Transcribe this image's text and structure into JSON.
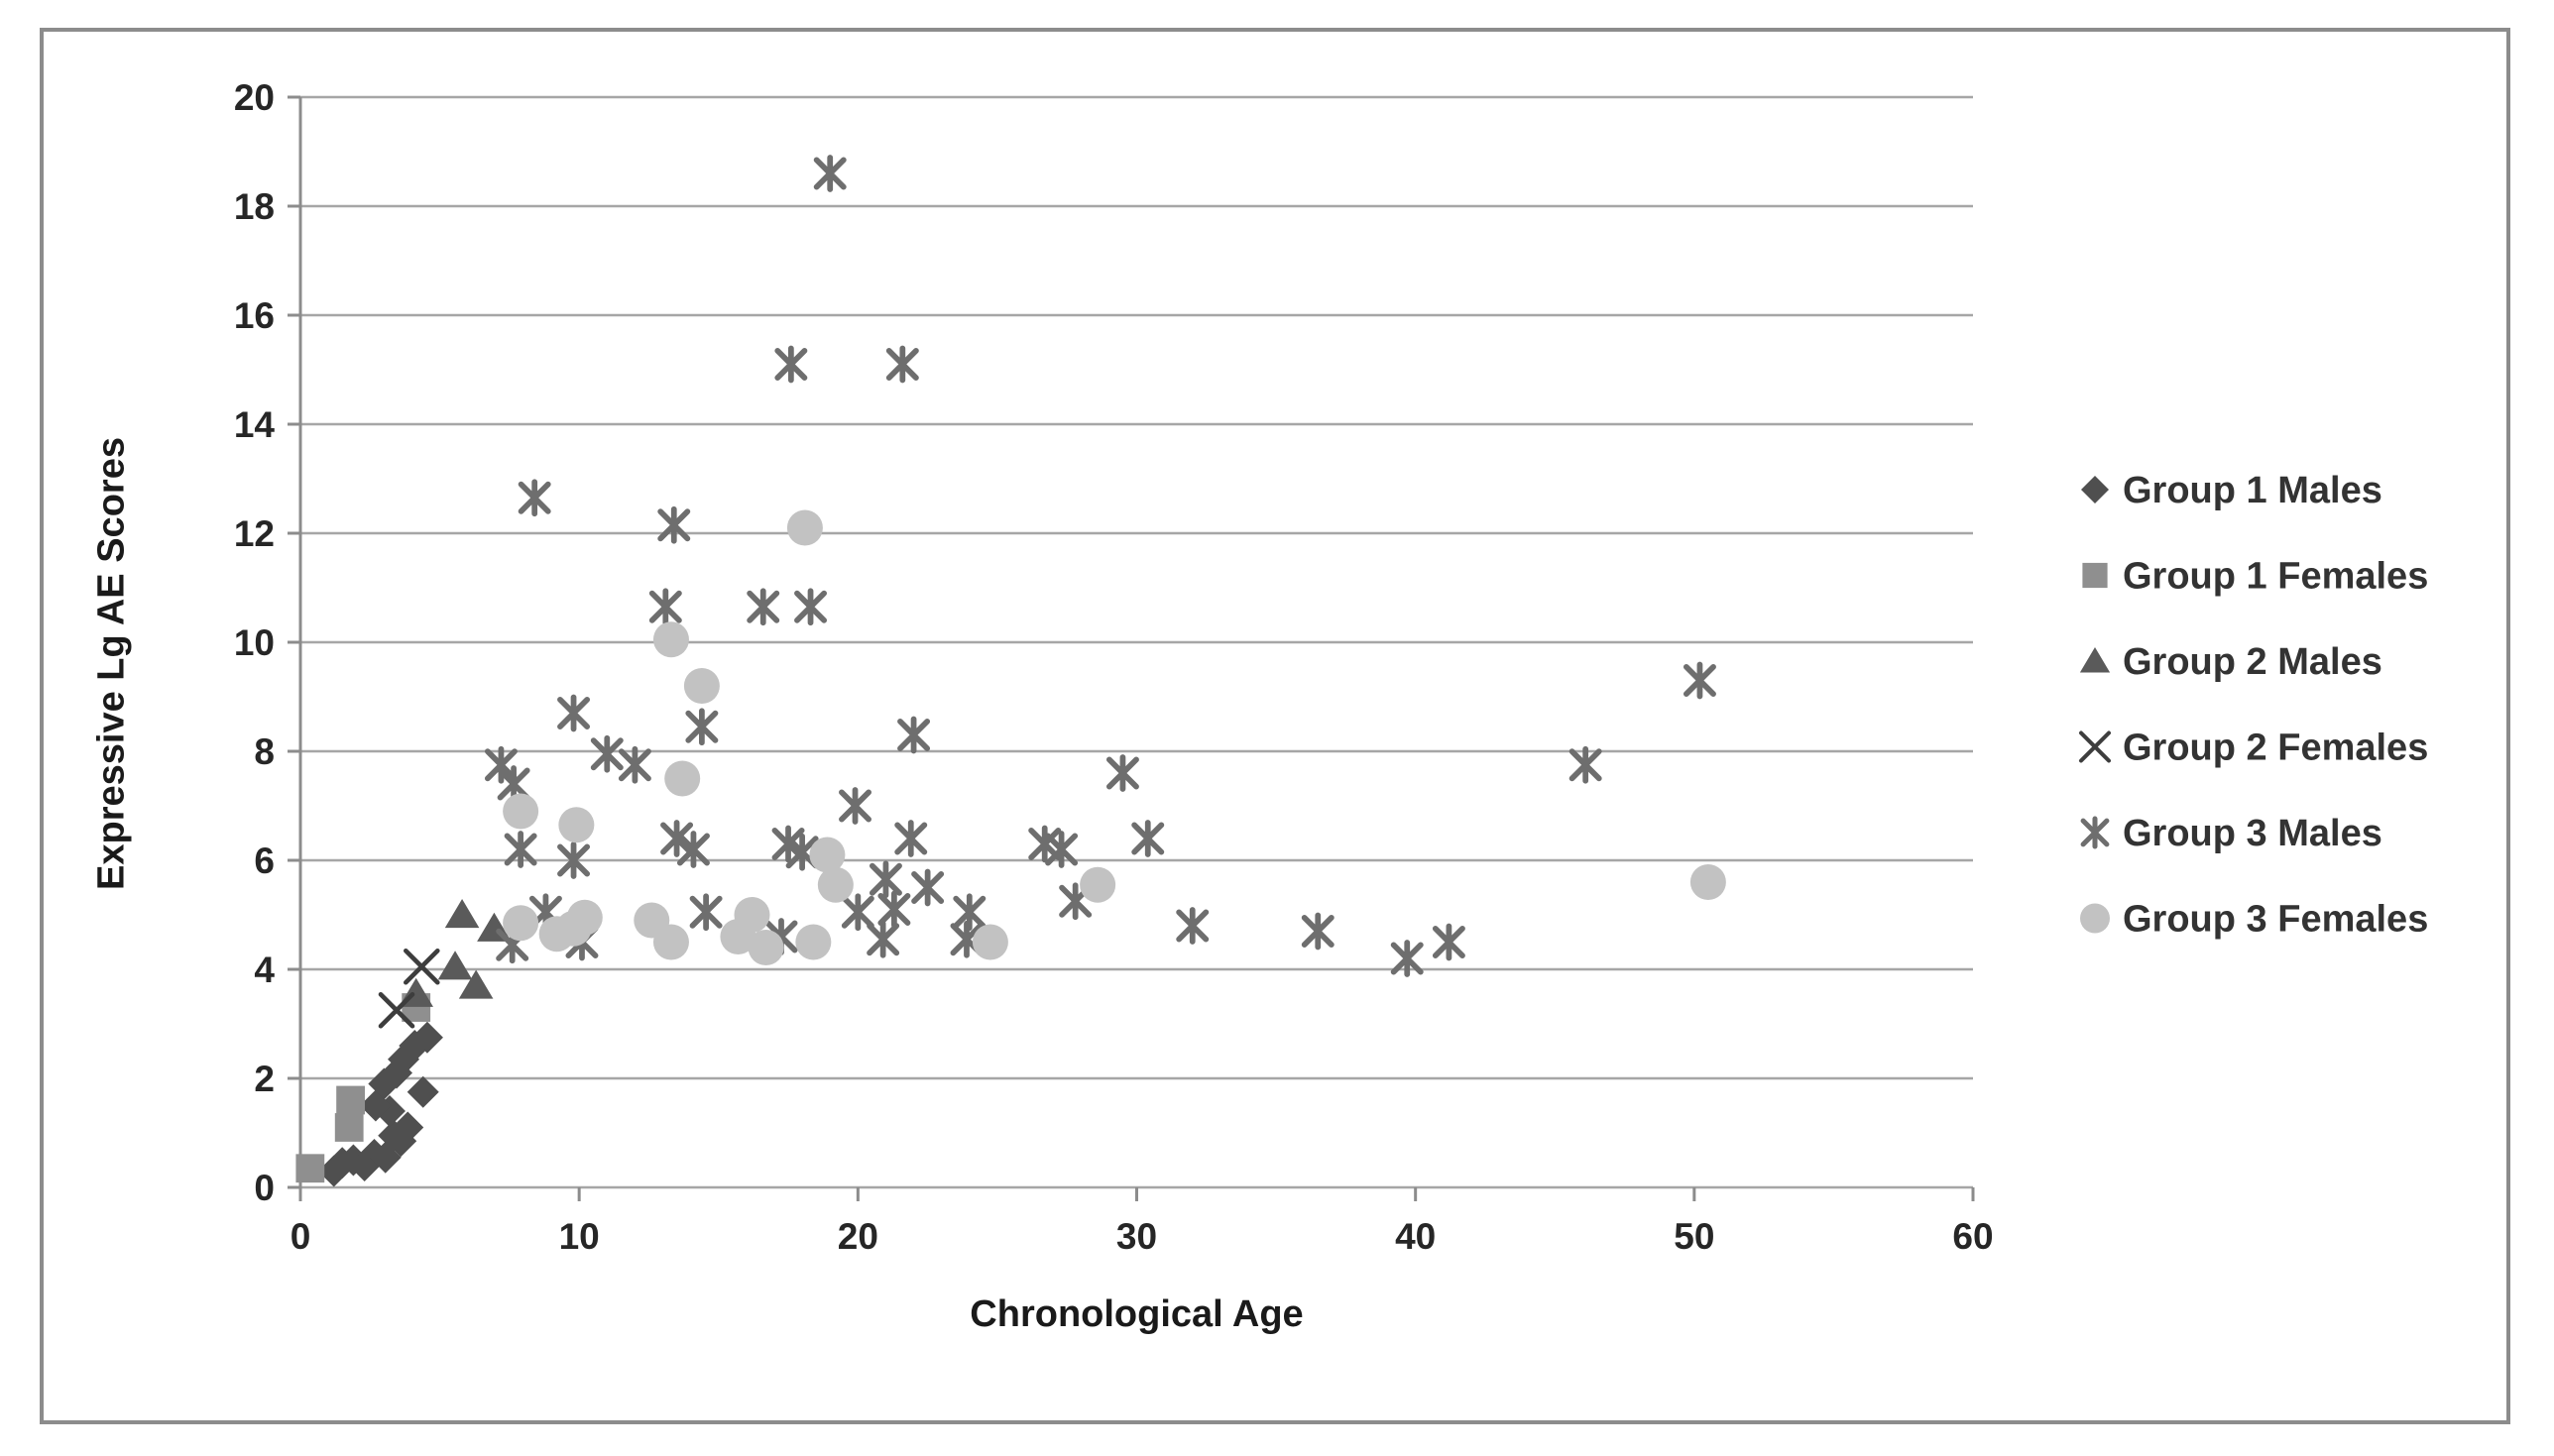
{
  "chart_data": {
    "type": "scatter",
    "title": "",
    "xlabel": "Chronological Age",
    "ylabel": "Expressive Lg AE Scores",
    "xlim": [
      0,
      60
    ],
    "ylim": [
      0,
      20
    ],
    "xticks": [
      0,
      10,
      20,
      30,
      40,
      50,
      60
    ],
    "yticks": [
      0,
      2,
      4,
      6,
      8,
      10,
      12,
      14,
      16,
      18,
      20
    ],
    "grid": "horizontal-only",
    "legend_position": "right",
    "colors": {
      "background": "#ffffff",
      "frame_border": "#8c8c8c",
      "gridline": "#a6a6a6",
      "axis_line": "#8c8c8c",
      "tick_label": "#262626",
      "axis_title": "#1a1a1a",
      "legend_text": "#333333"
    },
    "series": [
      {
        "name": "Group 1 Males",
        "marker": "diamond",
        "color": "#4f4f4f",
        "points": [
          [
            1.2,
            0.3
          ],
          [
            1.5,
            0.45
          ],
          [
            1.9,
            0.5
          ],
          [
            2.3,
            0.4
          ],
          [
            2.65,
            0.6
          ],
          [
            3.05,
            0.55
          ],
          [
            3.35,
            0.95
          ],
          [
            3.6,
            0.85
          ],
          [
            3.85,
            1.1
          ],
          [
            3.2,
            1.4
          ],
          [
            2.7,
            1.5
          ],
          [
            4.4,
            1.75
          ],
          [
            3.0,
            1.9
          ],
          [
            3.45,
            2.1
          ],
          [
            3.7,
            2.35
          ],
          [
            4.1,
            2.6
          ],
          [
            4.55,
            2.75
          ]
        ]
      },
      {
        "name": "Group 1 Females",
        "marker": "square",
        "color": "#8f8f8f",
        "points": [
          [
            0.35,
            0.35
          ],
          [
            1.75,
            1.1
          ],
          [
            1.8,
            1.6
          ],
          [
            4.15,
            3.3
          ]
        ]
      },
      {
        "name": "Group 2 Males",
        "marker": "triangle",
        "color": "#5a5a5a",
        "points": [
          [
            4.15,
            3.55
          ],
          [
            5.55,
            4.05
          ],
          [
            6.3,
            3.7
          ],
          [
            5.8,
            5.0
          ],
          [
            6.95,
            4.75
          ]
        ]
      },
      {
        "name": "Group 2 Females",
        "marker": "x",
        "color": "#3d3d3d",
        "points": [
          [
            3.45,
            3.25
          ],
          [
            4.35,
            4.05
          ]
        ]
      },
      {
        "name": "Group 3 Males",
        "marker": "asterisk",
        "color": "#6e6e6e",
        "points": [
          [
            7.6,
            4.45
          ],
          [
            8.8,
            5.05
          ],
          [
            10.1,
            4.5
          ],
          [
            14.55,
            5.05
          ],
          [
            17.25,
            4.6
          ],
          [
            20.0,
            5.05
          ],
          [
            20.9,
            4.55
          ],
          [
            21.0,
            5.65
          ],
          [
            21.3,
            5.1
          ],
          [
            22.5,
            5.5
          ],
          [
            23.9,
            4.55
          ],
          [
            24.0,
            5.05
          ],
          [
            27.8,
            5.25
          ],
          [
            7.9,
            6.2
          ],
          [
            9.8,
            6.0
          ],
          [
            13.5,
            6.4
          ],
          [
            14.1,
            6.2
          ],
          [
            17.5,
            6.3
          ],
          [
            18.0,
            6.15
          ],
          [
            21.9,
            6.4
          ],
          [
            26.7,
            6.3
          ],
          [
            27.3,
            6.2
          ],
          [
            30.4,
            6.4
          ],
          [
            7.2,
            7.75
          ],
          [
            7.65,
            7.4
          ],
          [
            11.0,
            7.95
          ],
          [
            12.0,
            7.75
          ],
          [
            19.9,
            7.0
          ],
          [
            22.0,
            8.3
          ],
          [
            29.5,
            7.6
          ],
          [
            9.8,
            8.7
          ],
          [
            14.4,
            8.45
          ],
          [
            13.1,
            10.65
          ],
          [
            16.6,
            10.65
          ],
          [
            18.3,
            10.65
          ],
          [
            8.4,
            12.65
          ],
          [
            13.4,
            12.15
          ],
          [
            17.6,
            15.1
          ],
          [
            21.6,
            15.1
          ],
          [
            19.0,
            18.6
          ],
          [
            32.0,
            4.8
          ],
          [
            36.5,
            4.7
          ],
          [
            39.7,
            4.2
          ],
          [
            41.2,
            4.5
          ],
          [
            46.1,
            7.75
          ],
          [
            50.2,
            9.3
          ]
        ]
      },
      {
        "name": "Group 3 Females",
        "marker": "circle",
        "color": "#c2c2c2",
        "points": [
          [
            7.9,
            4.85
          ],
          [
            9.2,
            4.65
          ],
          [
            9.8,
            4.75
          ],
          [
            10.2,
            4.95
          ],
          [
            12.6,
            4.9
          ],
          [
            13.3,
            4.5
          ],
          [
            15.7,
            4.6
          ],
          [
            16.2,
            5.0
          ],
          [
            16.7,
            4.4
          ],
          [
            18.4,
            4.5
          ],
          [
            19.2,
            5.55
          ],
          [
            24.75,
            4.5
          ],
          [
            28.6,
            5.55
          ],
          [
            7.9,
            6.9
          ],
          [
            9.9,
            6.65
          ],
          [
            18.9,
            6.1
          ],
          [
            13.7,
            7.5
          ],
          [
            13.3,
            10.05
          ],
          [
            14.4,
            9.2
          ],
          [
            18.1,
            12.1
          ],
          [
            50.5,
            5.6
          ]
        ]
      }
    ]
  }
}
